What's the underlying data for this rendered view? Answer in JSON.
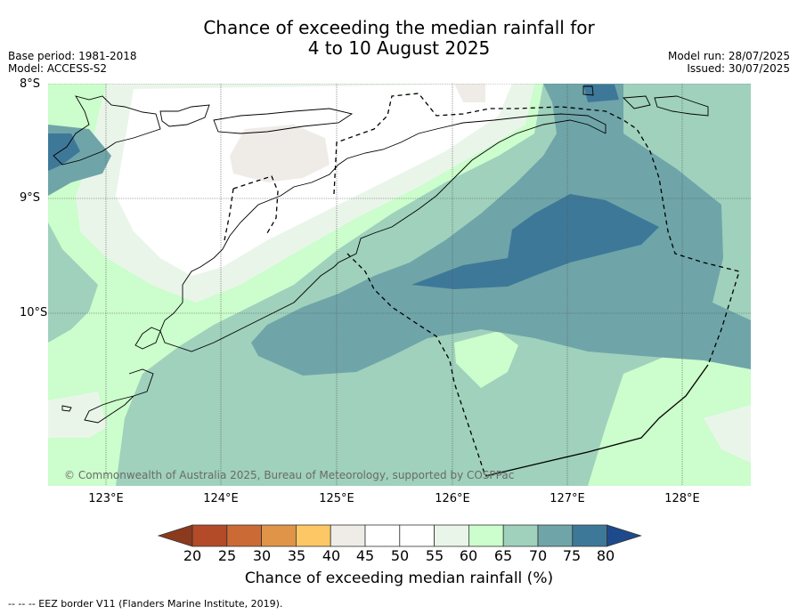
{
  "title_line1": "Chance of exceeding the median rainfall for",
  "title_line2": "4 to 10 August 2025",
  "base_period": "Base period: 1981-2018",
  "model": "Model: ACCESS-S2",
  "model_run": "Model run: 28/07/2025",
  "issued": "Issued: 30/07/2025",
  "lat_labels": [
    "8°S",
    "9°S",
    "10°S"
  ],
  "lon_labels": [
    "123°E",
    "124°E",
    "125°E",
    "126°E",
    "127°E",
    "128°E"
  ],
  "copyright": "© Commonwealth of Australia 2025, Bureau of Meteorology, supported by COSPPac",
  "colorbar": {
    "title": "Chance of exceeding median rainfall (%)",
    "ticks": [
      "20",
      "25",
      "30",
      "35",
      "40",
      "45",
      "50",
      "55",
      "60",
      "65",
      "70",
      "75",
      "80"
    ],
    "colors": [
      "#8b3a1e",
      "#b34a28",
      "#cc6a35",
      "#e09448",
      "#fdc765",
      "#efece8",
      "#ffffff",
      "#ffffff",
      "#eaf5ea",
      "#ccfdcc",
      "#9fd1bc",
      "#6fa5a8",
      "#3e7899",
      "#1e4a8b"
    ]
  },
  "footnote": "--  --  -- EEZ border V11 (Flanders Marine Institute, 2019)."
}
